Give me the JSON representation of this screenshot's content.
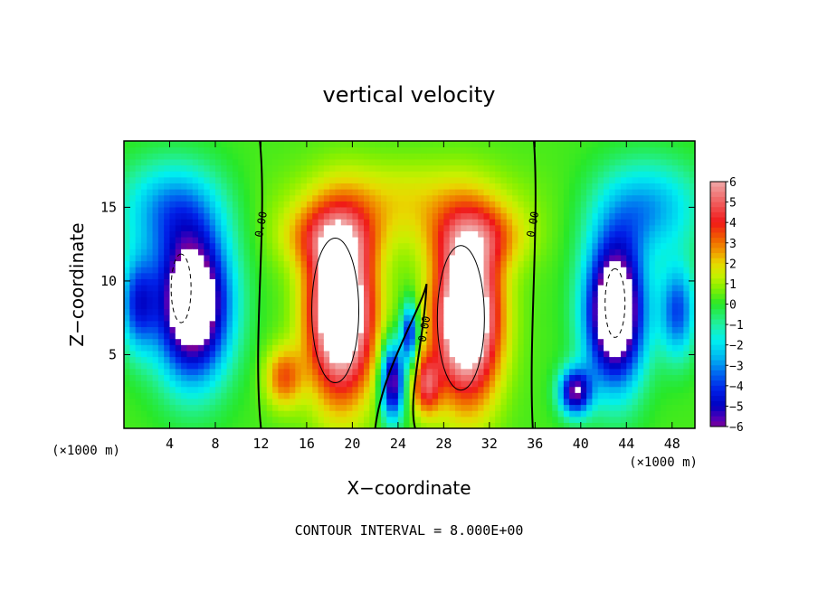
{
  "chart_data": {
    "type": "heatmap",
    "title": "vertical velocity",
    "xlabel": "X−coordinate",
    "ylabel": "Z−coordinate",
    "x_unit_label": "(×1000 m)",
    "y_unit_label": "(×1000 m)",
    "xlim": [
      0,
      50
    ],
    "ylim": [
      0,
      19.5
    ],
    "x_ticks": [
      4,
      8,
      12,
      16,
      20,
      24,
      28,
      32,
      36,
      40,
      44,
      48
    ],
    "x_tick_labels": [
      "4",
      "8",
      "12",
      "16",
      "20",
      "24",
      "28",
      "32",
      "36",
      "40",
      "44",
      "48"
    ],
    "y_ticks": [
      5,
      10,
      15
    ],
    "y_tick_labels": [
      "5",
      "10",
      "15"
    ],
    "colorbar": {
      "range": [
        -6,
        6
      ],
      "tick_labels": [
        "6",
        "5",
        "4",
        "3",
        "2",
        "1",
        "0",
        "−1",
        "−2",
        "−3",
        "−4",
        "−5",
        "−6"
      ],
      "color_stops": [
        {
          "value": 6.0,
          "color": "#f0a8a8"
        },
        {
          "value": 5.0,
          "color": "#f06060"
        },
        {
          "value": 4.0,
          "color": "#f01818"
        },
        {
          "value": 3.2,
          "color": "#f06000"
        },
        {
          "value": 2.5,
          "color": "#f0a000"
        },
        {
          "value": 2.0,
          "color": "#e8d800"
        },
        {
          "value": 1.4,
          "color": "#c8f000"
        },
        {
          "value": 0.8,
          "color": "#88f000"
        },
        {
          "value": 0.0,
          "color": "#28e828"
        },
        {
          "value": -1.0,
          "color": "#20f0a0"
        },
        {
          "value": -1.8,
          "color": "#00f0f0"
        },
        {
          "value": -2.6,
          "color": "#00b8f0"
        },
        {
          "value": -3.4,
          "color": "#0068f0"
        },
        {
          "value": -4.2,
          "color": "#0020e8"
        },
        {
          "value": -5.0,
          "color": "#0000c0"
        },
        {
          "value": -5.6,
          "color": "#5000b8"
        },
        {
          "value": -6.0,
          "color": "#780098"
        }
      ],
      "out_of_range_color": "#ffffff"
    },
    "features": [
      {
        "kind": "updraft",
        "x": 19.0,
        "z": 8.0,
        "sx": 2.8,
        "sz": 5.6,
        "amp": 9.0
      },
      {
        "kind": "updraft",
        "x": 30.0,
        "z": 7.6,
        "sx": 2.8,
        "sz": 5.4,
        "amp": 9.0
      },
      {
        "kind": "updraft",
        "x": 18.0,
        "z": 13.0,
        "sx": 4.0,
        "sz": 2.2,
        "amp": 2.8
      },
      {
        "kind": "updraft",
        "x": 31.0,
        "z": 13.0,
        "sx": 4.0,
        "sz": 2.2,
        "amp": 2.8
      },
      {
        "kind": "updraft",
        "x": 24.5,
        "z": 15.5,
        "sx": 9.0,
        "sz": 2.6,
        "amp": 1.6
      },
      {
        "kind": "updraft",
        "x": 26.5,
        "z": 3.0,
        "sx": 1.2,
        "sz": 2.0,
        "amp": 4.0
      },
      {
        "kind": "updraft",
        "x": 14.0,
        "z": 3.5,
        "sx": 1.6,
        "sz": 2.0,
        "amp": 3.0
      },
      {
        "kind": "downdraft",
        "x": 6.0,
        "z": 8.5,
        "sx": 3.2,
        "sz": 5.0,
        "amp": -9.0
      },
      {
        "kind": "downdraft",
        "x": 43.0,
        "z": 8.0,
        "sx": 2.6,
        "sz": 5.0,
        "amp": -9.0
      },
      {
        "kind": "downdraft",
        "x": 4.0,
        "z": 15.0,
        "sx": 4.5,
        "sz": 3.2,
        "amp": -3.0
      },
      {
        "kind": "downdraft",
        "x": 46.0,
        "z": 15.0,
        "sx": 4.5,
        "sz": 3.2,
        "amp": -3.0
      },
      {
        "kind": "downdraft",
        "x": 1.2,
        "z": 8.5,
        "sx": 1.6,
        "sz": 3.2,
        "amp": -4.0
      },
      {
        "kind": "downdraft",
        "x": 48.5,
        "z": 8.0,
        "sx": 1.6,
        "sz": 3.2,
        "amp": -4.0
      },
      {
        "kind": "downdraft",
        "x": 23.5,
        "z": 3.2,
        "sx": 1.0,
        "sz": 2.6,
        "amp": -6.5
      },
      {
        "kind": "downdraft",
        "x": 25.0,
        "z": 6.5,
        "sx": 0.7,
        "sz": 2.0,
        "amp": -5.0
      },
      {
        "kind": "downdraft",
        "x": 39.5,
        "z": 2.5,
        "sx": 1.4,
        "sz": 1.6,
        "amp": -6.0
      }
    ],
    "contours": [
      {
        "level": 0.0,
        "style": "solid",
        "label": "0.00",
        "label_x": 12.0,
        "label_z": 13.8
      },
      {
        "level": 0.0,
        "style": "solid",
        "label": "0.00",
        "label_x": 35.8,
        "label_z": 13.8
      },
      {
        "level": 0.0,
        "style": "solid",
        "label": "0.00",
        "label_x": 26.3,
        "label_z": 6.7
      },
      {
        "level": -8.0,
        "style": "dashed",
        "label": "",
        "label_x": 5.0,
        "label_z": 9.5
      },
      {
        "level": -8.0,
        "style": "dashed",
        "label": "",
        "label_x": 43.0,
        "label_z": 8.5
      },
      {
        "level": 8.0,
        "style": "solid",
        "label": "",
        "label_x": 18.5,
        "label_z": 8.0
      },
      {
        "level": 8.0,
        "style": "solid",
        "label": "",
        "label_x": 29.5,
        "label_z": 7.5
      }
    ],
    "grid": false,
    "legend": "right colorbar"
  },
  "contour_interval_text": "CONTOUR INTERVAL = 8.000E+00"
}
